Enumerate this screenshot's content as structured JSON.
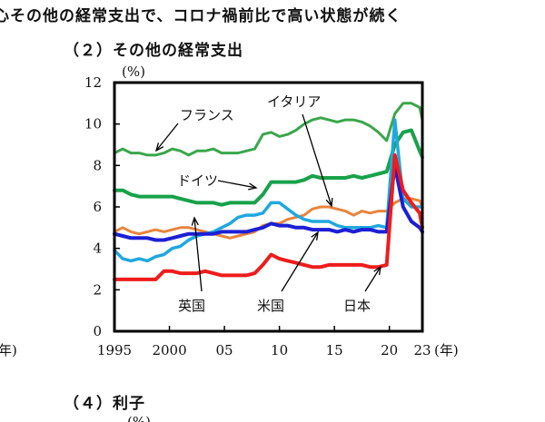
{
  "heading": "心その他の経常支出で、コロナ禍前比で高い状態が続く",
  "subtitle": "（２）その他の経常支出",
  "next_section": "（４）利子",
  "next_unit": "(%)",
  "chart_data": {
    "type": "line",
    "ylabel": "(%)",
    "xunit": "(年)",
    "xunit_left": "年)",
    "ylim": [
      0,
      12
    ],
    "yticks": [
      "0",
      "2",
      "4",
      "6",
      "8",
      "10",
      "12"
    ],
    "xticks": [
      {
        "x": 1995,
        "label": "1995"
      },
      {
        "x": 2000,
        "label": "2000"
      },
      {
        "x": 2005,
        "label": "05"
      },
      {
        "x": 2010,
        "label": "10"
      },
      {
        "x": 2015,
        "label": "15"
      },
      {
        "x": 2020,
        "label": "20"
      },
      {
        "x": 2023,
        "label": "23"
      }
    ],
    "xlim": [
      1995,
      2023
    ],
    "x": [
      1995,
      1995.75,
      1996.5,
      1997.25,
      1998,
      1998.75,
      1999.5,
      2000.25,
      2001,
      2001.75,
      2002.5,
      2003.25,
      2004,
      2004.75,
      2005.5,
      2006.25,
      2007,
      2007.75,
      2008.5,
      2009.25,
      2010,
      2010.75,
      2011.5,
      2012.25,
      2013,
      2013.75,
      2014.5,
      2015.25,
      2016,
      2016.75,
      2017.5,
      2018.25,
      2019,
      2019.75,
      2020.5,
      2021.25,
      2022,
      2022.75,
      2023
    ],
    "series": [
      {
        "name": "フランス",
        "color": "#3aa64b",
        "width": 3,
        "values": [
          8.6,
          8.8,
          8.6,
          8.6,
          8.5,
          8.5,
          8.6,
          8.8,
          8.7,
          8.5,
          8.7,
          8.7,
          8.8,
          8.6,
          8.6,
          8.6,
          8.7,
          8.8,
          9.5,
          9.6,
          9.4,
          9.5,
          9.7,
          10.0,
          10.2,
          10.3,
          10.2,
          10.1,
          10.2,
          10.2,
          10.1,
          9.9,
          9.6,
          9.2,
          10.5,
          11.0,
          11.0,
          10.8,
          10.2
        ]
      },
      {
        "name": "ドイツ",
        "color": "#17a24a",
        "width": 4,
        "values": [
          6.8,
          6.8,
          6.6,
          6.5,
          6.5,
          6.5,
          6.5,
          6.5,
          6.4,
          6.3,
          6.2,
          6.2,
          6.2,
          6.1,
          6.2,
          6.2,
          6.2,
          6.2,
          6.6,
          7.2,
          7.2,
          7.2,
          7.2,
          7.3,
          7.5,
          7.4,
          7.4,
          7.4,
          7.4,
          7.5,
          7.4,
          7.5,
          7.6,
          7.7,
          9.0,
          9.6,
          9.7,
          8.7,
          8.4
        ]
      },
      {
        "name": "イタリア",
        "color": "#e8843c",
        "width": 3,
        "values": [
          4.8,
          5.0,
          4.8,
          4.7,
          4.8,
          4.9,
          4.8,
          4.9,
          5.0,
          5.0,
          4.9,
          4.8,
          4.7,
          4.6,
          4.5,
          4.6,
          4.7,
          4.8,
          5.1,
          5.2,
          5.2,
          5.4,
          5.5,
          5.6,
          5.9,
          6.0,
          6.0,
          5.9,
          5.8,
          5.6,
          5.8,
          5.7,
          5.8,
          5.8,
          6.2,
          6.4,
          6.4,
          6.3,
          6.0
        ]
      },
      {
        "name": "英国",
        "color": "#1fa8df",
        "width": 3.5,
        "values": [
          3.9,
          3.5,
          3.4,
          3.5,
          3.4,
          3.6,
          3.7,
          4.0,
          4.1,
          4.4,
          4.6,
          4.7,
          4.8,
          5.0,
          5.2,
          5.5,
          5.6,
          5.6,
          5.7,
          6.2,
          6.2,
          5.9,
          5.6,
          5.4,
          5.3,
          5.3,
          5.3,
          5.1,
          5.0,
          5.0,
          5.0,
          5.0,
          5.1,
          5.0,
          10.2,
          6.4,
          6.0,
          6.0,
          6.0
        ]
      },
      {
        "name": "米国",
        "color": "#1c1fd4",
        "width": 4,
        "values": [
          4.7,
          4.6,
          4.5,
          4.5,
          4.5,
          4.4,
          4.4,
          4.5,
          4.6,
          4.7,
          4.7,
          4.7,
          4.7,
          4.8,
          4.8,
          4.8,
          4.8,
          4.9,
          5.0,
          5.2,
          5.1,
          5.1,
          5.0,
          5.0,
          4.9,
          4.9,
          4.9,
          4.8,
          4.9,
          4.8,
          4.9,
          4.9,
          4.8,
          4.8,
          8.0,
          6.0,
          5.3,
          5.0,
          4.8
        ]
      },
      {
        "name": "日本",
        "color": "#ee1c1c",
        "width": 4,
        "values": [
          2.5,
          2.5,
          2.5,
          2.5,
          2.5,
          2.5,
          2.9,
          2.9,
          2.8,
          2.8,
          2.8,
          2.9,
          2.8,
          2.7,
          2.7,
          2.7,
          2.7,
          2.8,
          3.2,
          3.7,
          3.5,
          3.4,
          3.3,
          3.2,
          3.1,
          3.1,
          3.2,
          3.2,
          3.2,
          3.2,
          3.2,
          3.1,
          3.1,
          3.2,
          8.5,
          6.8,
          6.2,
          5.7,
          5.0
        ]
      }
    ],
    "labels": [
      {
        "text": "フランス",
        "series": "フランス"
      },
      {
        "text": "イタリア",
        "series": "イタリア"
      },
      {
        "text": "ドイツ",
        "series": "ドイツ"
      },
      {
        "text": "英国",
        "series": "英国"
      },
      {
        "text": "米国",
        "series": "米国"
      },
      {
        "text": "日本",
        "series": "日本"
      }
    ]
  }
}
